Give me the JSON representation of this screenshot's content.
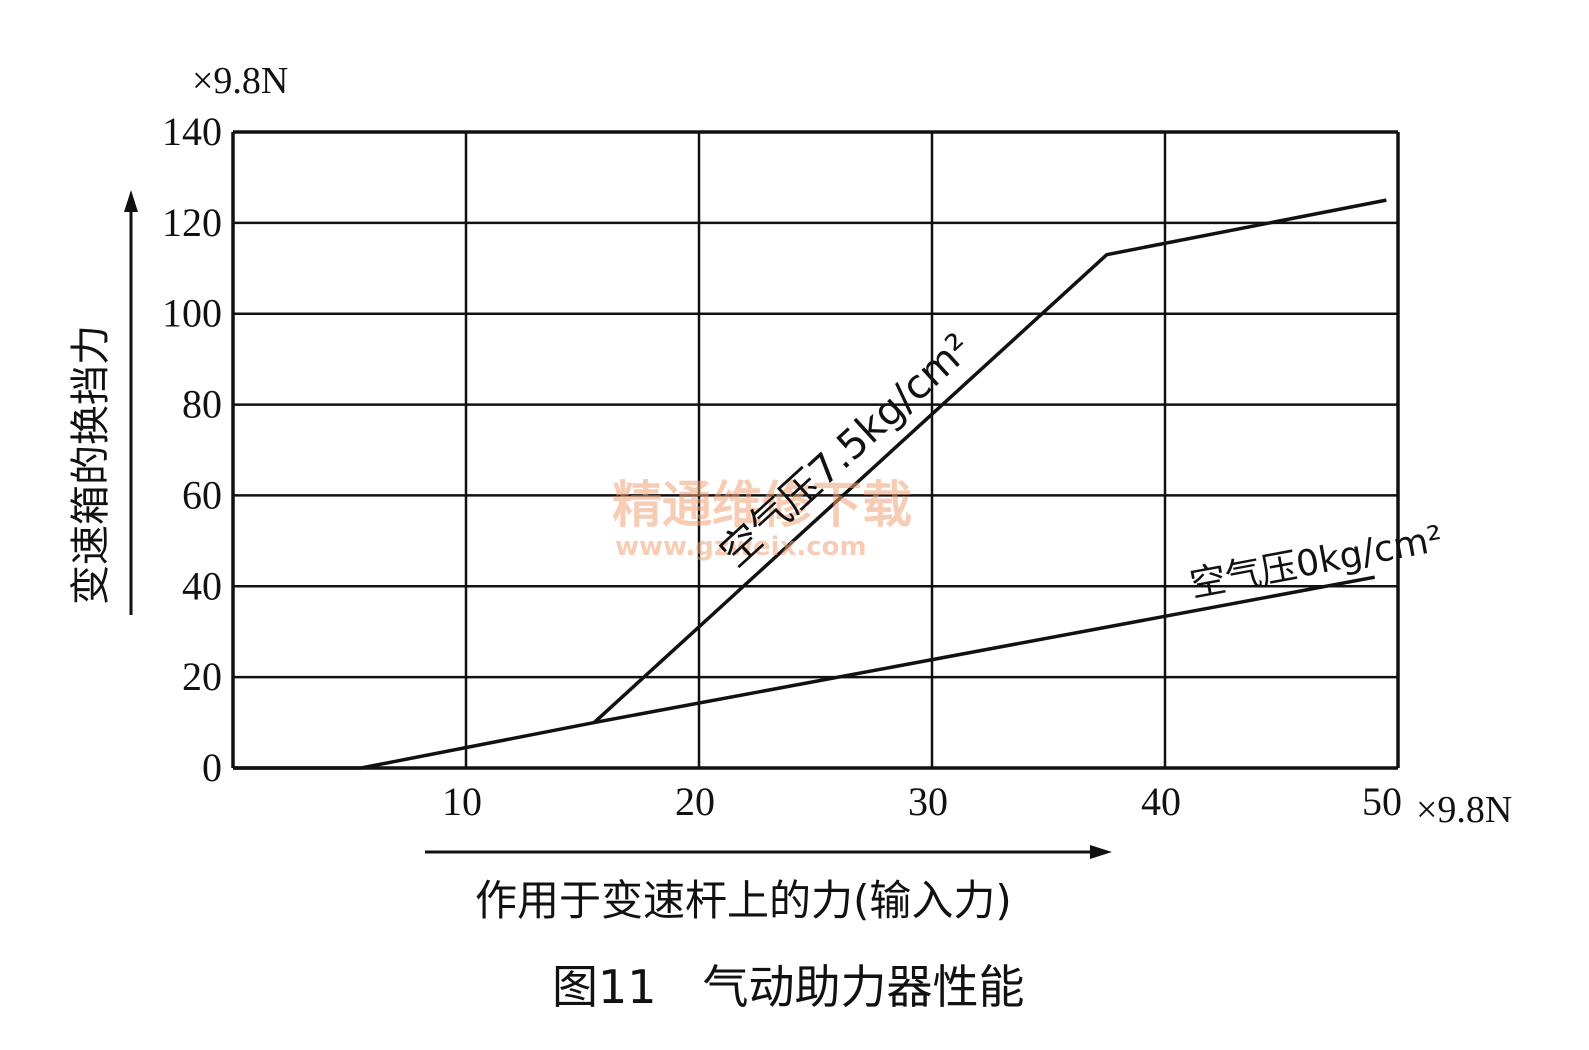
{
  "chart_data": {
    "type": "line",
    "title": "图11　气动助力器性能",
    "xlabel": "作用于变速杆上的力(输入力)",
    "ylabel": "变速箱的换挡力",
    "x_unit": "×9.8N",
    "y_unit": "×9.8N",
    "xlim": [
      0,
      50
    ],
    "ylim": [
      0,
      140
    ],
    "x_ticks": [
      10,
      20,
      30,
      40,
      50
    ],
    "y_ticks": [
      0,
      20,
      40,
      60,
      80,
      100,
      120,
      140
    ],
    "grid": true,
    "series": [
      {
        "name": "空气压7.5kg/cm²",
        "x": [
          15.5,
          37.5,
          49.5
        ],
        "y": [
          10,
          113,
          125
        ]
      },
      {
        "name": "空气压0kg/cm²",
        "x": [
          0,
          5.5,
          15.5,
          49
        ],
        "y": [
          0,
          0,
          10,
          42
        ]
      }
    ],
    "annotations": [
      {
        "text": "空气压7.5kg/cm²",
        "series": 0
      },
      {
        "text": "空气压0kg/cm²",
        "series": 1
      }
    ],
    "colors": {
      "line": "#111111",
      "grid": "#111111",
      "watermark": "#f2a37a"
    }
  },
  "watermark": {
    "line1": "精通维修下载",
    "line2": "www.gzweix.com"
  }
}
